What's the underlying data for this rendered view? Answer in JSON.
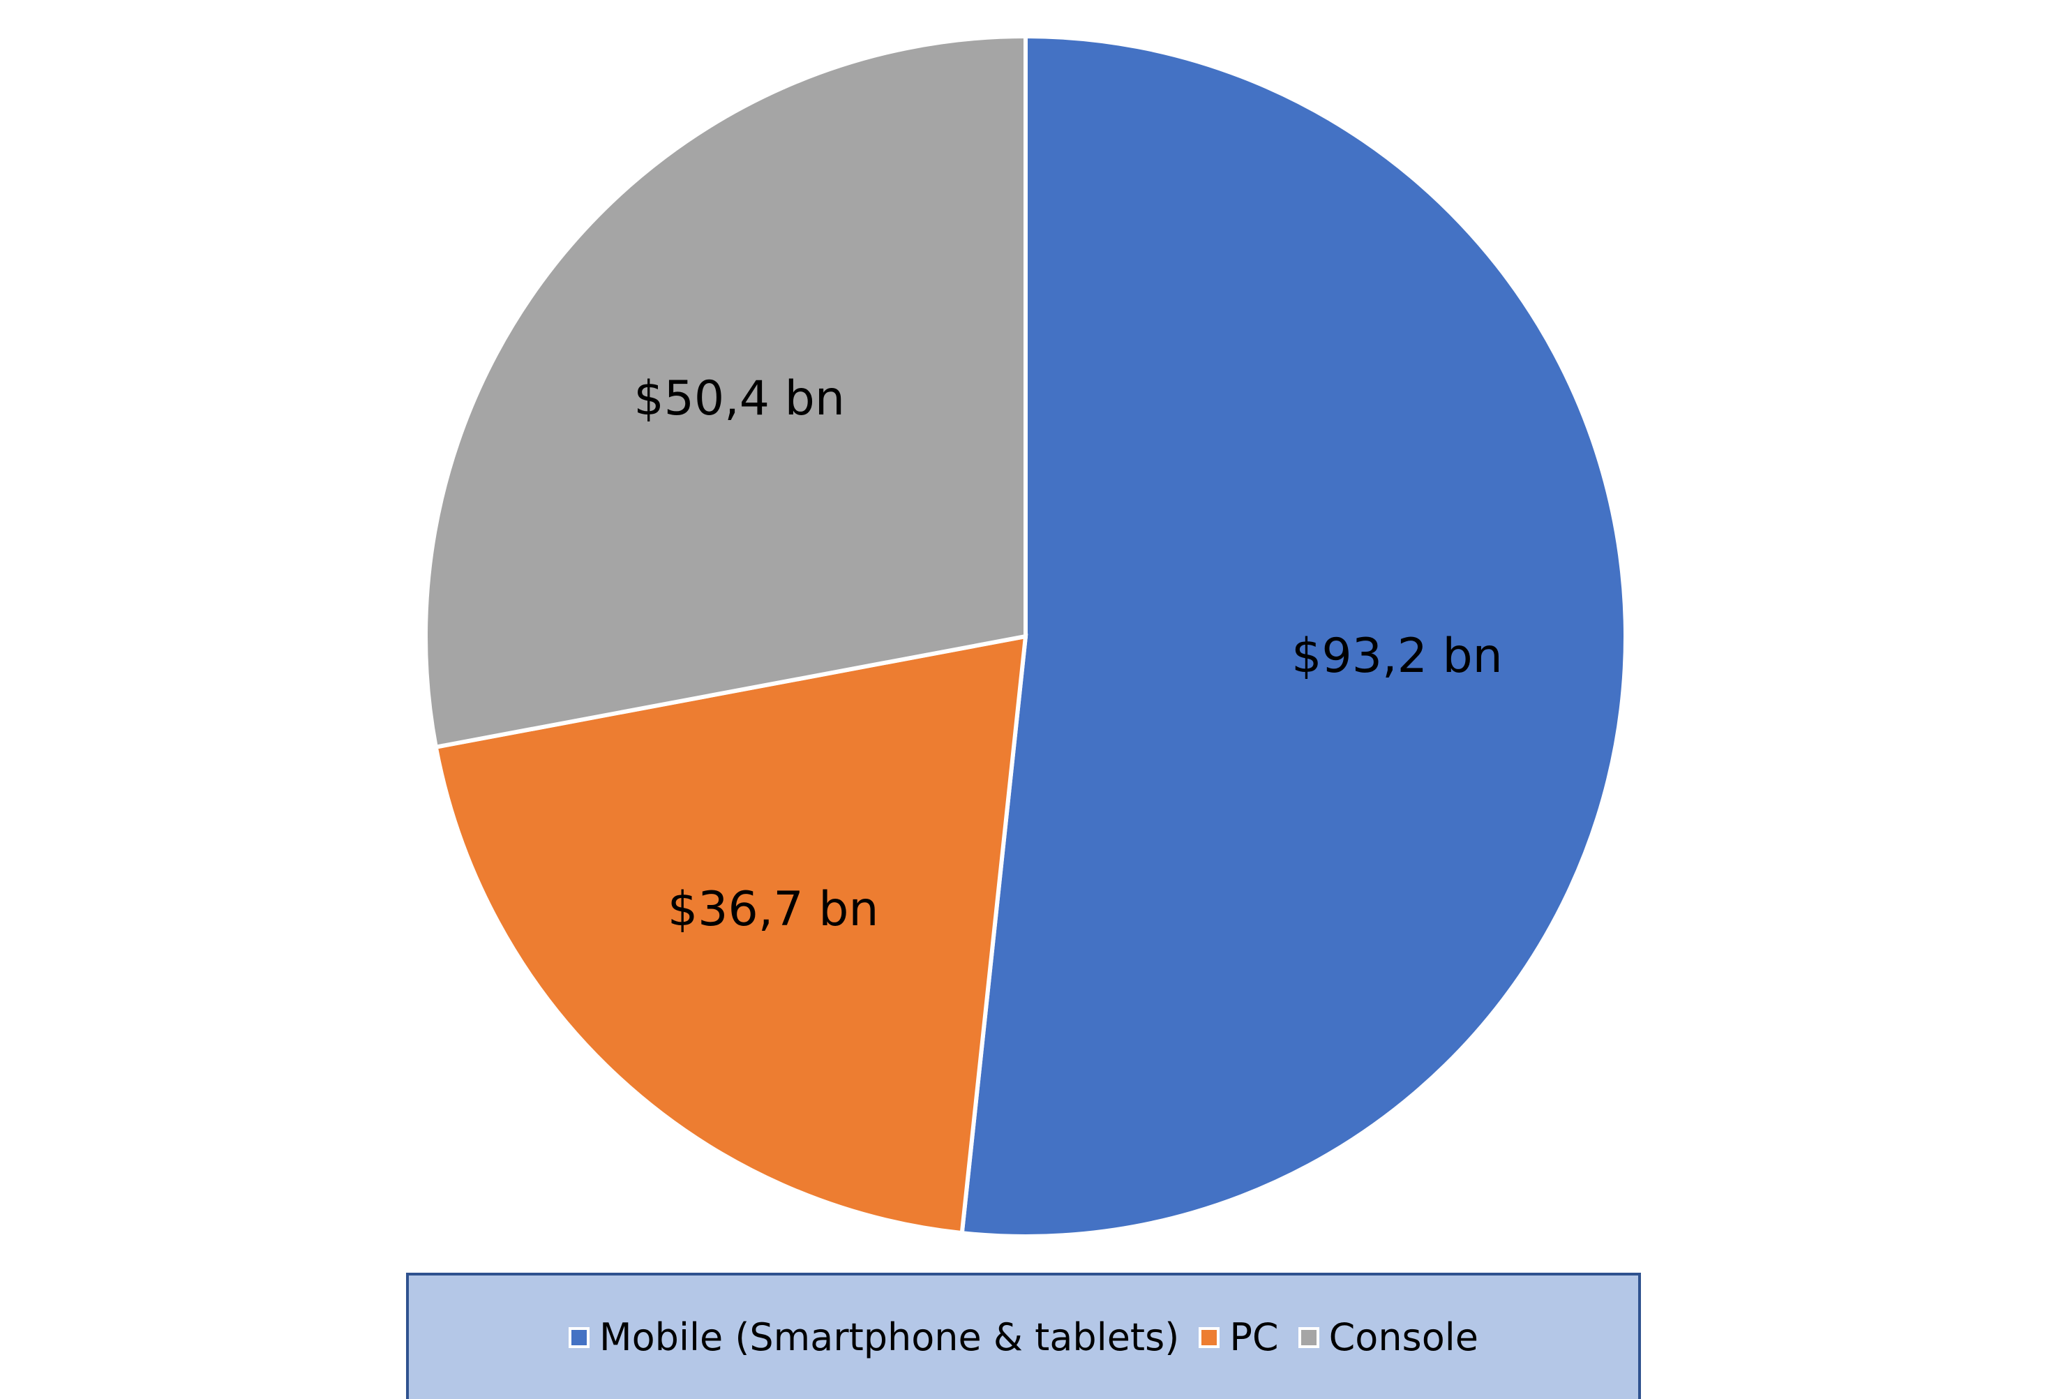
{
  "chart_data": {
    "type": "pie",
    "title": "",
    "categories": [
      "Mobile (Smartphone & tablets)",
      "PC",
      "Console"
    ],
    "values": [
      93.2,
      36.7,
      50.4
    ],
    "data_labels": [
      "$93,2 bn",
      "$36,7 bn",
      "$50,4 bn"
    ],
    "colors": [
      "#4472c4",
      "#ed7d31",
      "#a5a5a5"
    ],
    "start_angle": "12 o'clock",
    "direction": "clockwise",
    "legend": {
      "placement": "bottom",
      "entries": [
        {
          "label": "Mobile (Smartphone & tablets)",
          "color": "#4472c4"
        },
        {
          "label": "PC",
          "color": "#ed7d31"
        },
        {
          "label": "Console",
          "color": "#a5a5a5"
        }
      ]
    }
  }
}
